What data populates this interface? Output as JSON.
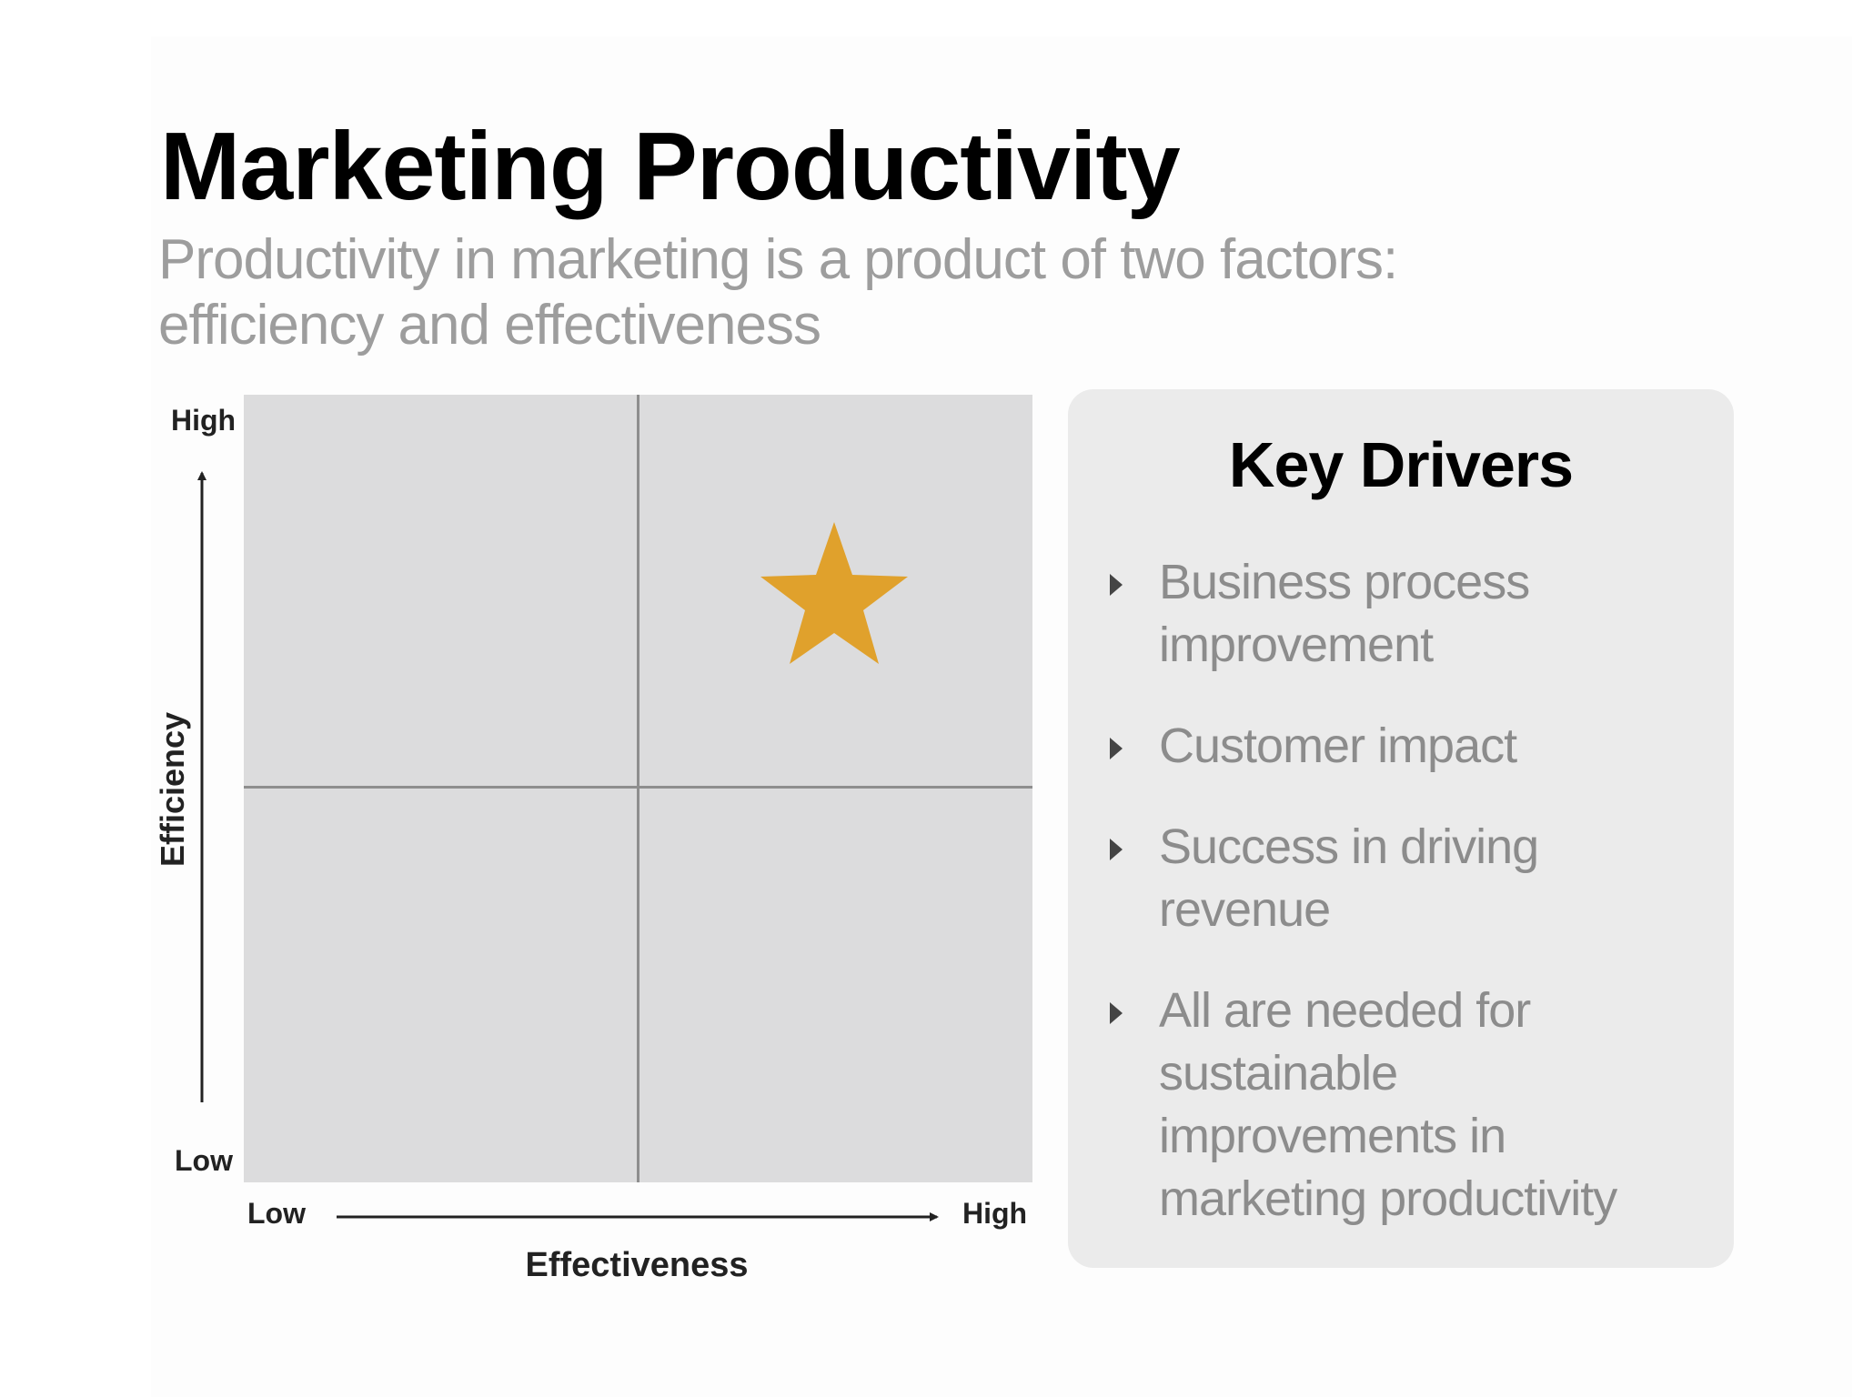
{
  "title": "Marketing Productivity",
  "subtitle": "Productivity in marketing is a product of two factors: efficiency and effectiveness",
  "matrix": {
    "y_axis": {
      "label": "Efficiency",
      "high": "High",
      "low": "Low"
    },
    "x_axis": {
      "label": "Effectiveness",
      "low": "Low",
      "high": "High"
    },
    "marker": {
      "icon": "star-icon",
      "quadrant": "high-effectiveness-high-efficiency",
      "color": "#E0A12C"
    },
    "quadrant_color": "#DCDCDD",
    "divider_color": "#8E8E8E"
  },
  "key_drivers": {
    "heading": "Key Drivers",
    "items": [
      {
        "label": "Business process improvement"
      },
      {
        "label": "Customer impact"
      },
      {
        "label": "Success in driving revenue"
      },
      {
        "label": "All are needed for sustainable improvements in marketing productivity"
      }
    ]
  }
}
